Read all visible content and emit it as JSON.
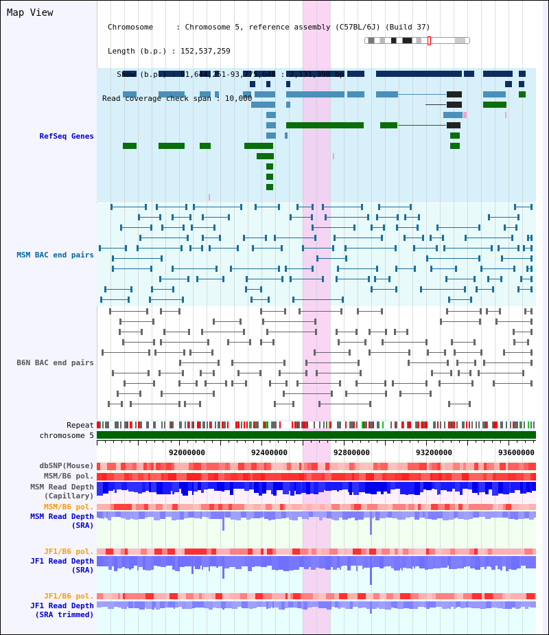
{
  "title": "Map View",
  "header": {
    "chromosome": "Chromosome     : Chromosome 5, reference assembly (C57BL/6J) (Build 37)",
    "length": "Length (b.p.) : 152,537,259",
    "show": "  Show (b.p.) : 91,644,251-93,775,648 : 2,131,398 bp",
    "span": "Read coverage check span : 10,000"
  },
  "tracks": {
    "refseq": "RefSeq Genes",
    "msm_bac": "MSM BAC end pairs",
    "b6n_bac": "B6N BAC end pairs",
    "repeat": "Repeat",
    "chromosome": "chromosome 5",
    "dbsnp": "dbSNP(Mouse)",
    "msm_pol": "MSM/B6 pol.",
    "msm_cap": "MSM Read Depth\n(Capillary)",
    "msm_pol2": "MSM/B6 pol.",
    "msm_sra": "MSM Read Depth\n(SRA)",
    "jf1_pol": "JF1/B6 pol.",
    "jf1_sra": "JF1 Read Depth\n(SRA)",
    "jf1_pol2": "JF1/B6 pol.",
    "jf1_trim": "JF1 Read Depth\n(SRA trimmed)"
  },
  "ruler": [
    "92000000",
    "92400000",
    "92800000",
    "93200000",
    "93600000"
  ],
  "colors": {
    "refseq_bg": "#d8f0fa",
    "msm_bg": "#e8fafa",
    "chrom": "#006400",
    "highlight": "#f8d8f4",
    "gray_label": "#555555",
    "orange": "#ff9900",
    "blue": "#0000cc"
  }
}
